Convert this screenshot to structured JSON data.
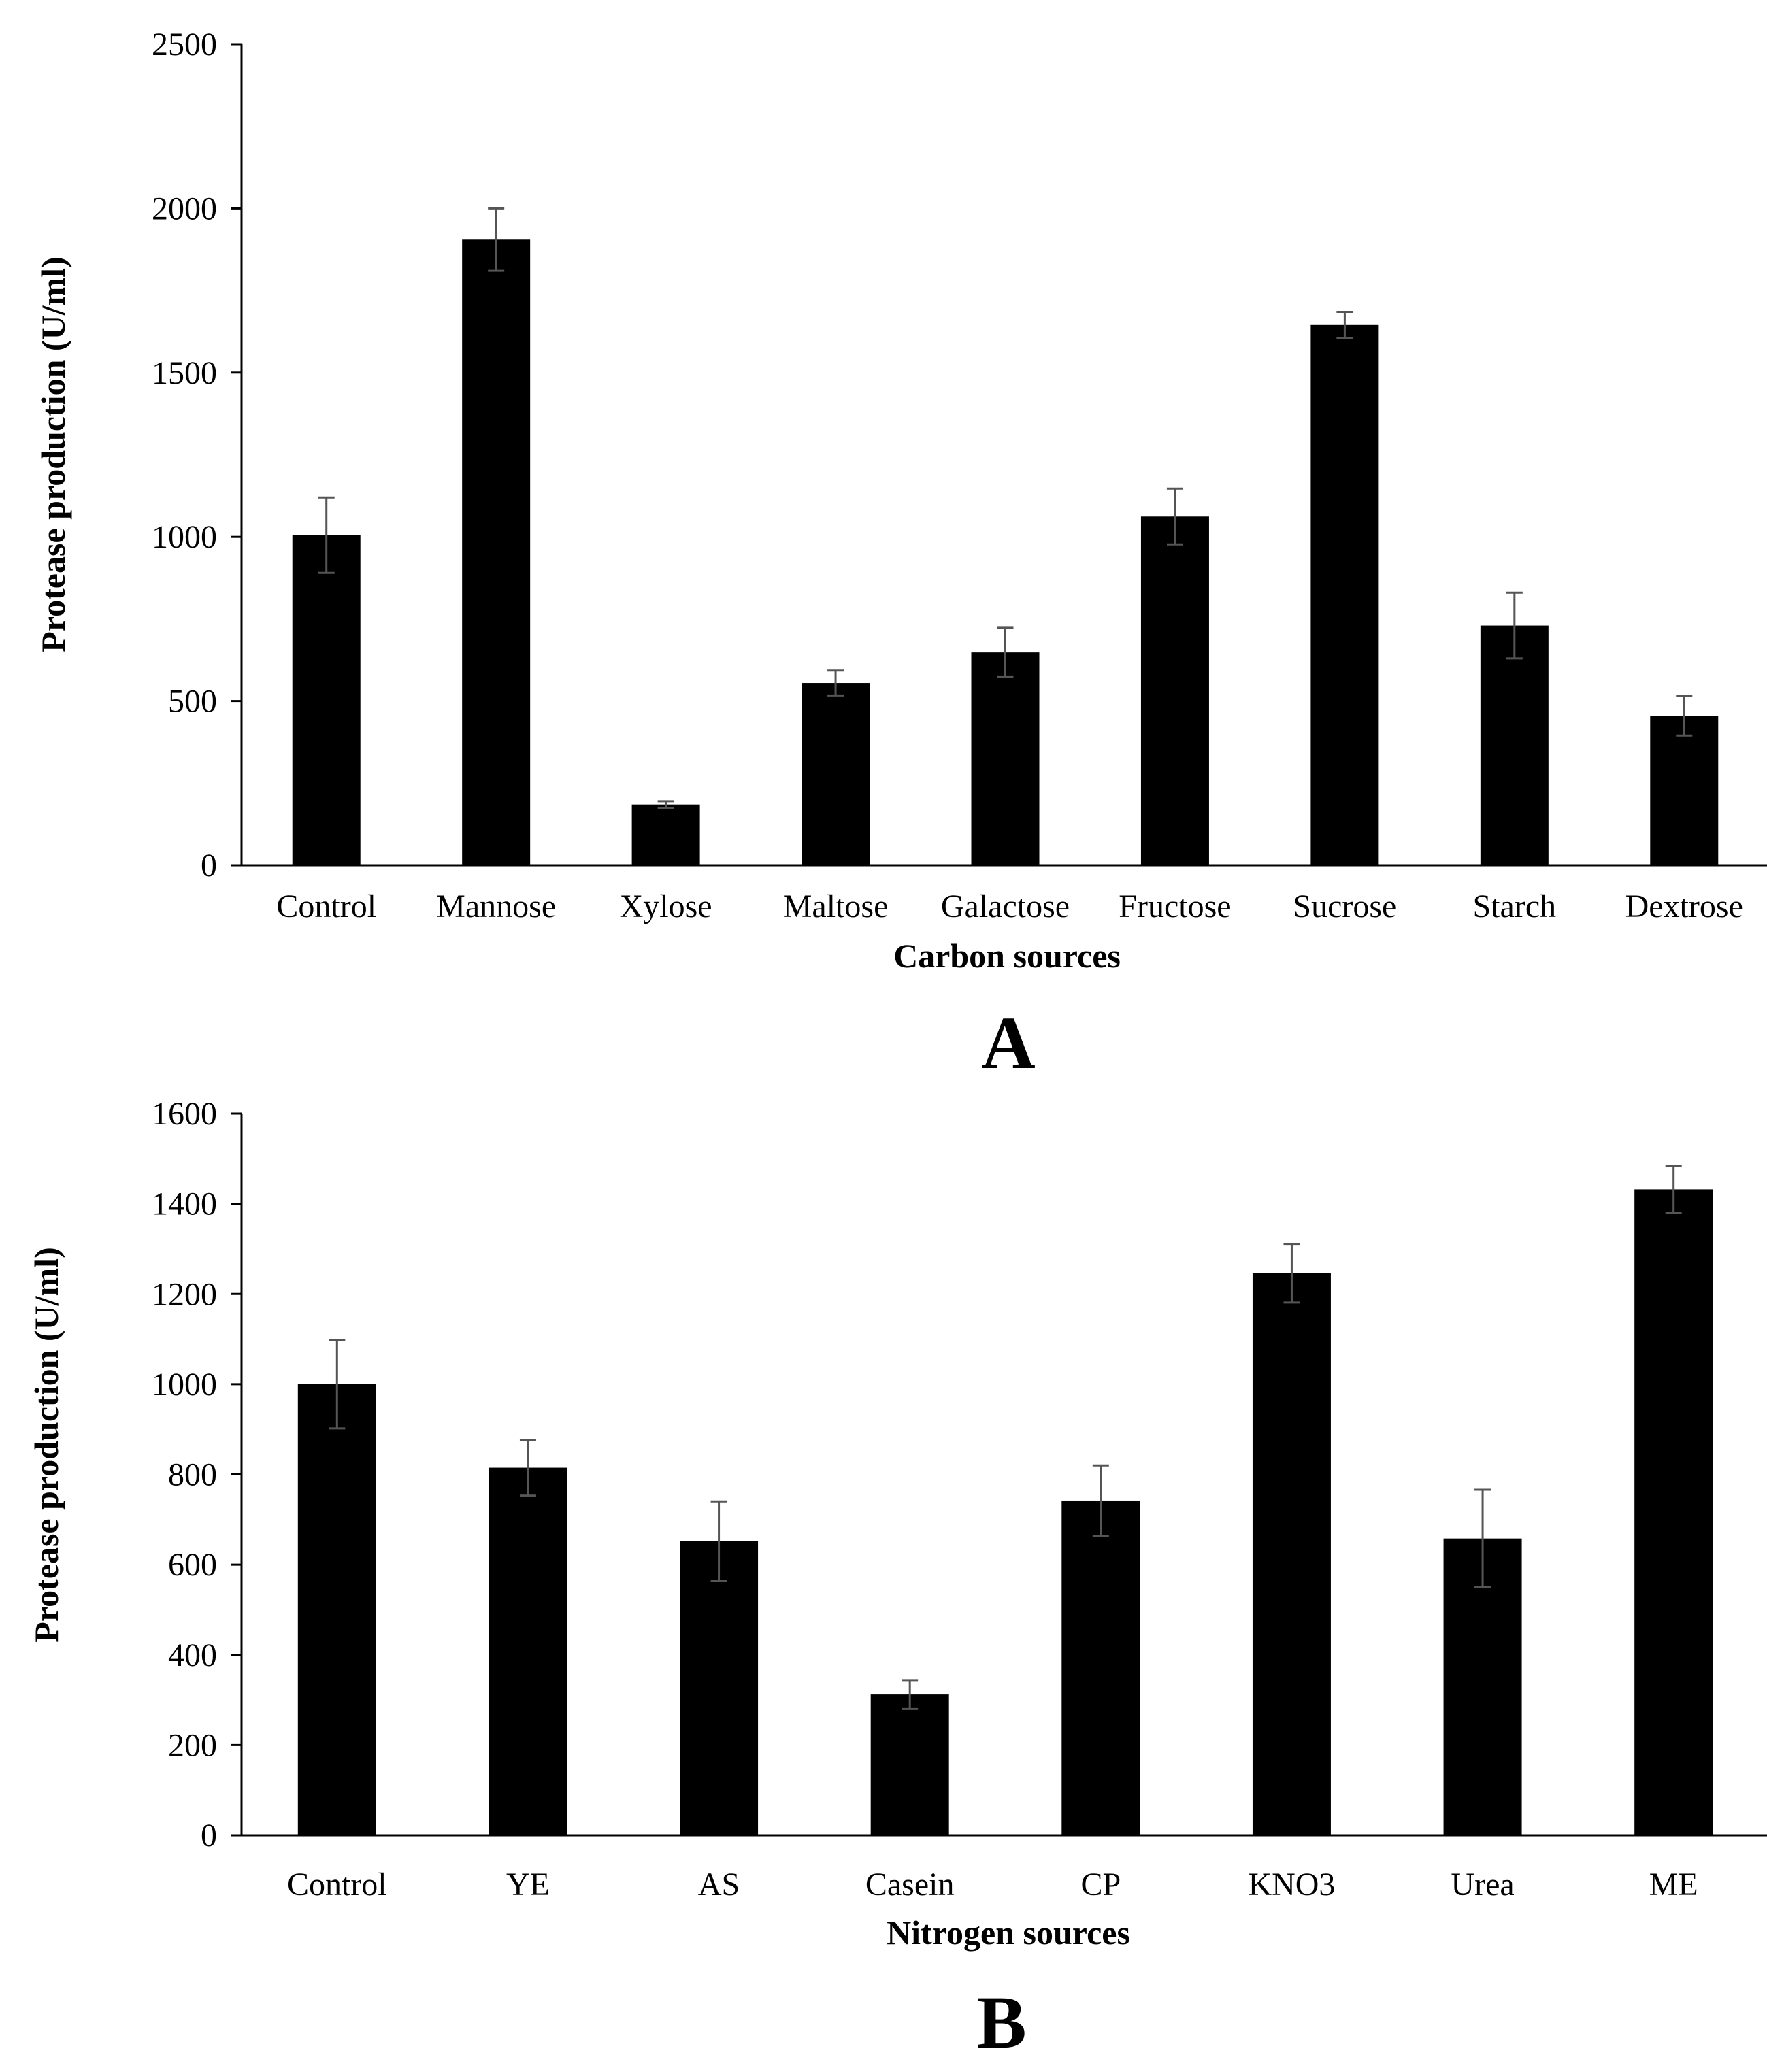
{
  "colors": {
    "bar": "#000000",
    "axis": "#000000",
    "error_bar": "#555555",
    "background": "#ffffff"
  },
  "chart_data": [
    {
      "type": "bar",
      "panel_label": "A",
      "title": "",
      "xlabel": "Carbon sources",
      "ylabel": "Protease production (U/ml)",
      "ylim": [
        0,
        2500
      ],
      "yticks": [
        0,
        500,
        1000,
        1500,
        2000,
        2500
      ],
      "grid": false,
      "categories": [
        "Control",
        "Mannose",
        "Xylose",
        "Maltose",
        "Galactose",
        "Fructose",
        "Sucrose",
        "Starch",
        "Dextrose"
      ],
      "values": [
        1005,
        1905,
        185,
        555,
        648,
        1062,
        1645,
        730,
        455
      ],
      "errors": [
        115,
        95,
        10,
        38,
        75,
        85,
        40,
        100,
        60
      ]
    },
    {
      "type": "bar",
      "panel_label": "B",
      "title": "",
      "xlabel": "Nitrogen sources",
      "ylabel": "Protease production (U/ml)",
      "ylim": [
        0,
        1600
      ],
      "yticks": [
        0,
        200,
        400,
        600,
        800,
        1000,
        1200,
        1400,
        1600
      ],
      "grid": false,
      "categories": [
        "Control",
        "YE",
        "AS",
        "Casein",
        "CP",
        "KNO3",
        "Urea",
        "ME"
      ],
      "values": [
        1000,
        815,
        652,
        312,
        742,
        1246,
        658,
        1432
      ],
      "errors": [
        98,
        62,
        88,
        32,
        78,
        65,
        108,
        52
      ]
    }
  ]
}
